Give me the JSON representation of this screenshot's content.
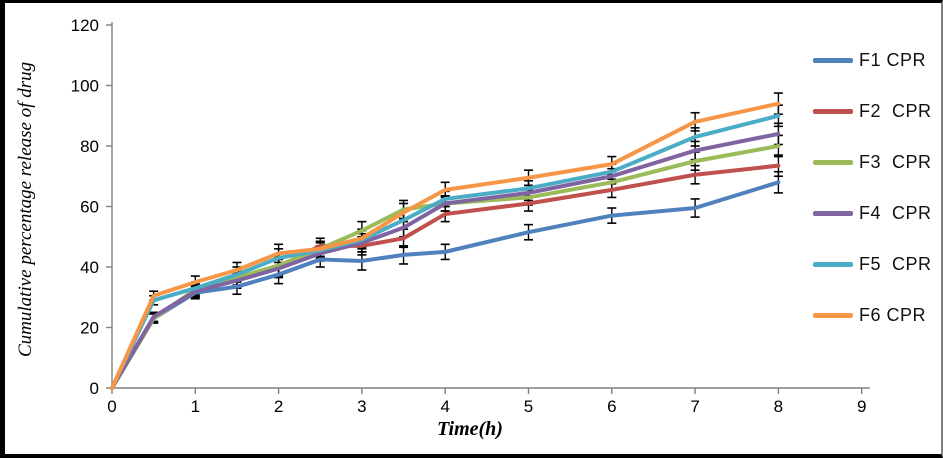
{
  "chart_data": {
    "type": "line",
    "title": "",
    "xlabel": "Time(h)",
    "ylabel": "Cumulative percentage release of drug",
    "xlim": [
      0,
      9
    ],
    "ylim": [
      0,
      120
    ],
    "xticks": [
      0,
      1,
      2,
      3,
      4,
      5,
      6,
      7,
      8,
      9
    ],
    "yticks": [
      0,
      20,
      40,
      60,
      80,
      100,
      120
    ],
    "grid": false,
    "legend_position": "right",
    "axis_color": "#808080",
    "error_bar_color": "#000000",
    "x": [
      0,
      0.5,
      1,
      1.5,
      2,
      2.5,
      3,
      3.5,
      4,
      5,
      6,
      7,
      8
    ],
    "error": [
      0,
      1.5,
      2,
      2.5,
      3,
      2.5,
      3,
      3,
      2.5,
      2.5,
      2.5,
      3,
      3.5
    ],
    "series": [
      {
        "name": "F1 CPR",
        "color": "#4F81BD",
        "values": [
          0,
          23,
          31.5,
          33.5,
          37.5,
          42.5,
          42,
          44,
          45,
          51.5,
          57,
          59.5,
          68
        ]
      },
      {
        "name": "F2  CPR",
        "color": "#C0504D",
        "values": [
          0,
          23.5,
          32,
          36,
          40,
          47,
          47,
          49.5,
          57.5,
          61,
          65.5,
          70.5,
          73.5
        ]
      },
      {
        "name": "F3  CPR",
        "color": "#9BBB59",
        "values": [
          0,
          23,
          32.5,
          36.5,
          40.5,
          46,
          52,
          59,
          61,
          63,
          68,
          75,
          80
        ]
      },
      {
        "name": "F4  CPR",
        "color": "#8064A2",
        "values": [
          0,
          23.5,
          32,
          35.5,
          39.5,
          44.5,
          48,
          53,
          61,
          64.5,
          70,
          78.5,
          84
        ]
      },
      {
        "name": "F5  CPR",
        "color": "#4BACC6",
        "values": [
          0,
          29,
          33,
          37.5,
          43,
          45.5,
          49,
          55.5,
          62.5,
          66,
          71.5,
          83,
          90
        ]
      },
      {
        "name": "F6 CPR",
        "color": "#F79646",
        "values": [
          0,
          30.5,
          35,
          39,
          44.5,
          46,
          49.5,
          58,
          65.5,
          69.5,
          74,
          88,
          94
        ]
      }
    ]
  }
}
